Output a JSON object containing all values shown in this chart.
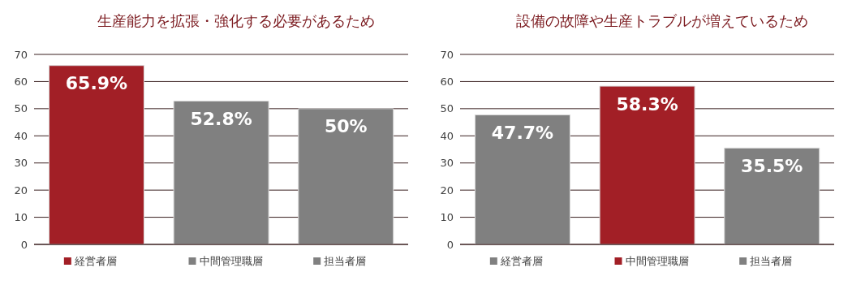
{
  "chart_data": [
    {
      "type": "bar",
      "title": "生産能力を拡張・強化する必要があるため",
      "categories": [
        "経営者層",
        "中間管理職層",
        "担当者層"
      ],
      "values": [
        65.9,
        52.8,
        50
      ],
      "colors": [
        "#a21f26",
        "#808080",
        "#808080"
      ],
      "value_labels": [
        "65.9%",
        "52.8%",
        "50%"
      ],
      "ylim": [
        0,
        70
      ],
      "yticks": [
        0,
        10,
        20,
        30,
        40,
        50,
        60,
        70
      ],
      "grid": "y"
    },
    {
      "type": "bar",
      "title": "設備の故障や生産トラブルが増えているため",
      "categories": [
        "経営者層",
        "中間管理職層",
        "担当者層"
      ],
      "values": [
        47.7,
        58.3,
        35.5
      ],
      "colors": [
        "#808080",
        "#a21f26",
        "#808080"
      ],
      "value_labels": [
        "47.7%",
        "58.3%",
        "35.5%"
      ],
      "ylim": [
        0,
        70
      ],
      "yticks": [
        0,
        10,
        20,
        30,
        40,
        50,
        60,
        70
      ],
      "grid": "y"
    }
  ]
}
